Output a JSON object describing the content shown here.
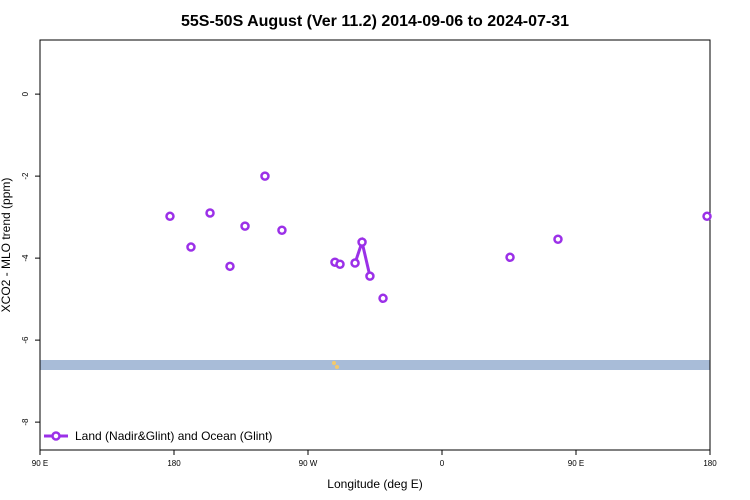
{
  "chart_data": {
    "type": "line",
    "title": "55S-50S August (Ver 11.2)   2014-09-06 to 2024-07-31",
    "x_label": "Longitude (deg E)",
    "y_label": "XCO2 - MLO trend (ppm)",
    "x": [
      177.3,
      null,
      191.4,
      null,
      204.2,
      null,
      217.6,
      null,
      227.7,
      null,
      241.1,
      null,
      252.5,
      null,
      288.1,
      null,
      291.5,
      null,
      301.6,
      306.3,
      311.6,
      null,
      320.4,
      null,
      405.7,
      null,
      437.9,
      null,
      538.0
    ],
    "series": [
      {
        "name": "Land (Nadir&Glint) and Ocean (Glint)",
        "color": "#9b30e8",
        "values": [
          -2.98,
          null,
          -3.73,
          null,
          -2.9,
          null,
          -4.2,
          null,
          -3.22,
          null,
          -2.0,
          null,
          -3.32,
          null,
          -4.1,
          null,
          -4.15,
          null,
          -4.12,
          -3.61,
          -4.44,
          null,
          -4.98,
          null,
          -3.98,
          null,
          -3.54,
          null,
          -2.98
        ]
      }
    ],
    "xlim": [
      90,
      540
    ],
    "xticks": [
      {
        "value": 90,
        "label": "90 E"
      },
      180,
      {
        "value": 270,
        "label": "90 W"
      },
      {
        "value": 360,
        "label": "0"
      },
      {
        "value": 450,
        "label": "90 E"
      },
      {
        "value": 540,
        "label": "180"
      }
    ],
    "ylim": [
      -8.68,
      1.32
    ],
    "yticks": [
      0,
      -2,
      -4,
      -6,
      -8
    ],
    "legend": "bottom-left"
  }
}
